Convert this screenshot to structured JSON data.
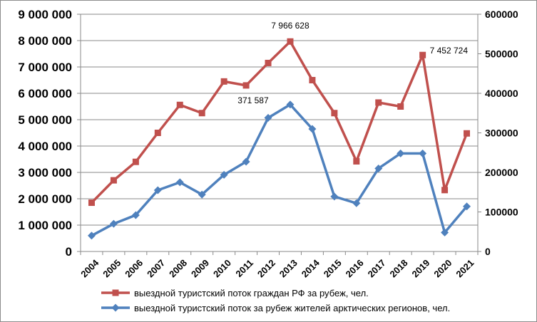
{
  "chart_data": {
    "type": "line",
    "title": "",
    "xlabel": "",
    "ylabel": "",
    "categories": [
      "2004",
      "2005",
      "2006",
      "2007",
      "2008",
      "2009",
      "2010",
      "2011",
      "2012",
      "2013",
      "2014",
      "2015",
      "2016",
      "2017",
      "2018",
      "2019",
      "2020",
      "2021"
    ],
    "y_left": {
      "range": [
        0,
        9000000
      ],
      "ticks": [
        "0",
        "1 000 000",
        "2 000 000",
        "3 000 000",
        "4 000 000",
        "5 000 000",
        "6 000 000",
        "7 000 000",
        "8 000 000",
        "9 000 000"
      ]
    },
    "y_right": {
      "range": [
        0,
        600000
      ],
      "ticks": [
        "0",
        "100000",
        "200000",
        "300000",
        "400000",
        "500000",
        "600000"
      ]
    },
    "grid": true,
    "legend": "bottom",
    "series": [
      {
        "name": "выездной туристский поток граждан РФ за рубеж, чел.",
        "axis": "left",
        "color": "#c0504d",
        "marker": "square",
        "values": [
          1850000,
          2700000,
          3400000,
          4500000,
          5560000,
          5250000,
          6450000,
          6300000,
          7150000,
          7966628,
          6500000,
          5250000,
          3420000,
          5650000,
          5500000,
          7452724,
          2330000,
          4480000
        ],
        "labels": [
          {
            "index": 9,
            "text": "7 966 628"
          },
          {
            "index": 15,
            "text": "7 452 724"
          }
        ]
      },
      {
        "name": "выездной туристский поток за рубеж жителей арктических регионов, чел.",
        "axis": "right",
        "color": "#4f81bd",
        "marker": "diamond",
        "values": [
          40000,
          70000,
          92000,
          155000,
          175000,
          144000,
          194000,
          227000,
          338000,
          371587,
          310000,
          139000,
          122000,
          210000,
          248000,
          248000,
          48000,
          114000
        ],
        "labels": [
          {
            "index": 9,
            "text": "371 587"
          }
        ]
      }
    ]
  }
}
